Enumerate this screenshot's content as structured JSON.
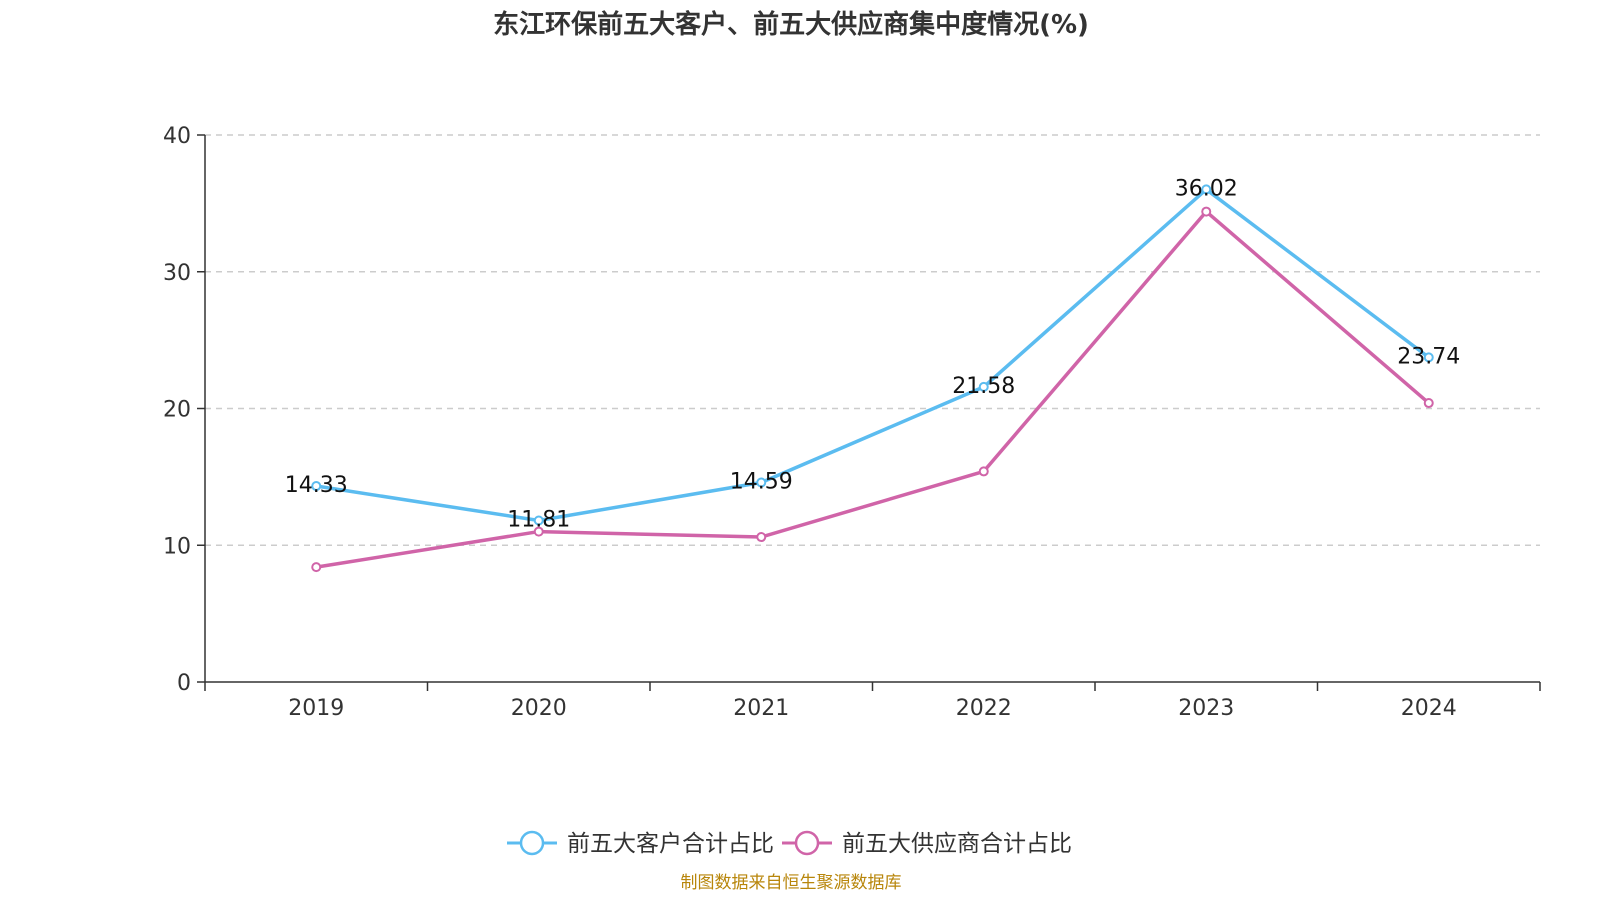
{
  "chart_data": {
    "type": "line",
    "title": "东江环保前五大客户、前五大供应商集中度情况(%)",
    "categories": [
      "2019",
      "2020",
      "2021",
      "2022",
      "2023",
      "2024"
    ],
    "ylim": [
      0,
      40
    ],
    "yticks": [
      0,
      10,
      20,
      30,
      40
    ],
    "grid": true,
    "legend_position": "bottom",
    "series": [
      {
        "name": "前五大客户合计占比",
        "color": "#5bbcf0",
        "values": [
          14.33,
          11.81,
          14.59,
          21.58,
          36.02,
          23.74
        ],
        "data_labels": [
          "14.33",
          "11.81",
          "14.59",
          "21.58",
          "36.02",
          "23.74"
        ]
      },
      {
        "name": "前五大供应商合计占比",
        "color": "#d064a8",
        "values": [
          8.4,
          11.0,
          10.6,
          15.4,
          34.4,
          20.4
        ],
        "data_labels": []
      }
    ]
  },
  "source_note": "制图数据来自恒生聚源数据库"
}
